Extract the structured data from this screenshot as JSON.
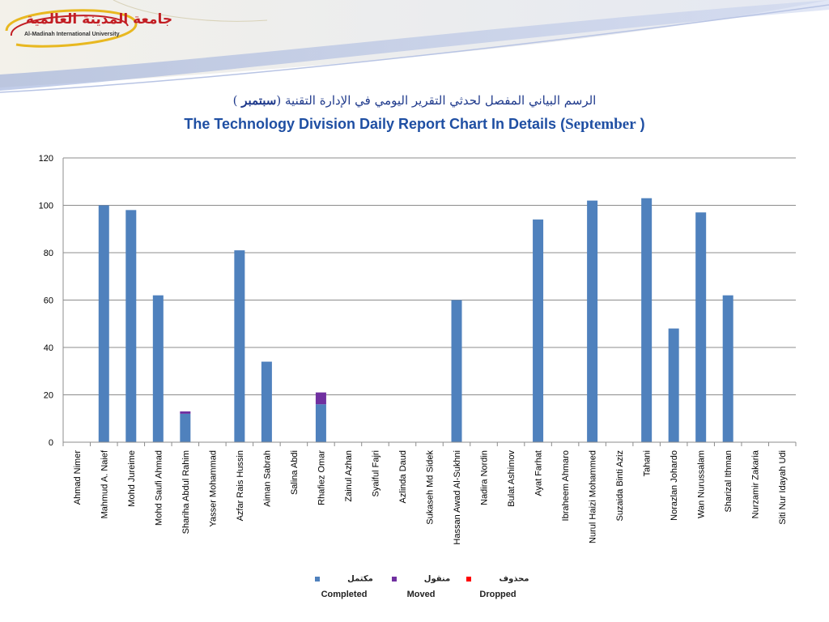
{
  "branding": {
    "logo_ar": "جامعة المدينة العالمية",
    "logo_en": "Al-Madinah International University"
  },
  "title_ar": {
    "prefix": "الرسم البياني المفصل لحدثي التقرير اليومي في الإدارة التقنية (",
    "accent": "سبتمبر",
    "suffix": " )"
  },
  "title_en": {
    "prefix": "The Technology Division Daily Report Chart In Details (",
    "accent": "September",
    "suffix": " )"
  },
  "legend": [
    {
      "ar": "مكتمل",
      "en": "Completed",
      "color": "#4f81bd"
    },
    {
      "ar": "منقول",
      "en": "Moved",
      "color": "#7030a0"
    },
    {
      "ar": "محذوف",
      "en": "Dropped",
      "color": "#ff0000"
    }
  ],
  "chart_data": {
    "type": "bar",
    "stacked": true,
    "categories": [
      "Ahmad Nimer",
      "Mahmud A. Naief",
      "Mohd Jureime",
      "Mohd Saufi Ahmad",
      "Shariha Abdul Rahim",
      "Yasser Mohammad",
      "Azfar Rais Hussin",
      "Aiman Sabrah",
      "Salina Abdi",
      "Rhafiez Omar",
      "Zainul Azhan",
      "Syaiful Fajri",
      "Azlinda Daud",
      "Sukaseh Md Sidek",
      "Hassan Awad Al-Sukhni",
      "Nadira Nordin",
      "Bulat Ashimov",
      "Ayat Farhat",
      "Ibraheem Ahmaro",
      "Nurul Haizi Mohammed",
      "Suzaida Binti Aziz",
      "Tahani",
      "Norazlan Johardo",
      "Wan Nurussalam",
      "Sharizal Ithman",
      "Nurzamir Zakaria",
      "Siti Nur Idayah Udi"
    ],
    "series": [
      {
        "name": "Completed",
        "values": [
          0,
          100,
          98,
          62,
          12,
          0,
          81,
          34,
          0,
          16,
          0,
          0,
          0,
          0,
          60,
          0,
          0,
          94,
          0,
          102,
          0,
          103,
          48,
          97,
          62,
          0,
          0
        ]
      },
      {
        "name": "Moved",
        "values": [
          0,
          0,
          0,
          0,
          1,
          0,
          0,
          0,
          0,
          5,
          0,
          0,
          0,
          0,
          0,
          0,
          0,
          0,
          0,
          0,
          0,
          0,
          0,
          0,
          0,
          0,
          0
        ]
      },
      {
        "name": "Dropped",
        "values": [
          0,
          0,
          0,
          0,
          0,
          0,
          0,
          0,
          0,
          0,
          0,
          0,
          0,
          0,
          0,
          0,
          0,
          0,
          0,
          0,
          0,
          0,
          0,
          0,
          0,
          0,
          0
        ]
      }
    ],
    "ylim": [
      0,
      120
    ],
    "yticks": [
      "0",
      "20",
      "40",
      "60",
      "80",
      "100",
      "120"
    ],
    "grid": true,
    "legend_position": "bottom"
  }
}
